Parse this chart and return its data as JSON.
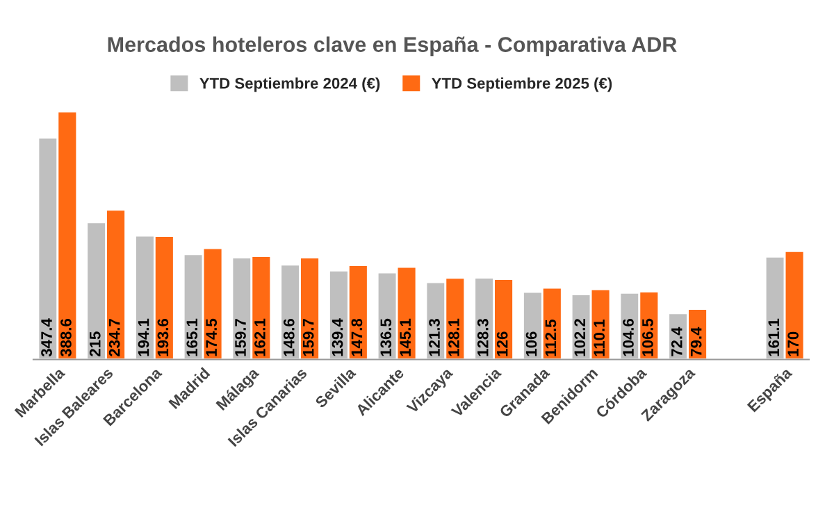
{
  "chart_data": {
    "type": "bar",
    "title": "Mercados hoteleros clave en España - Comparativa ADR",
    "categories": [
      "Marbella",
      "Islas Baleares",
      "Barcelona",
      "Madrid",
      "Málaga",
      "Islas Canarias",
      "Sevilla",
      "Alicante",
      "Vizcaya",
      "Valencia",
      "Granada",
      "Benidorm",
      "Córdoba",
      "Zaragoza",
      null,
      "España"
    ],
    "series": [
      {
        "name": "YTD Septiembre 2024 (€)",
        "color": "#bfbfbf",
        "values": [
          347.4,
          215,
          194.1,
          165.1,
          159.7,
          148.6,
          139.4,
          136.5,
          121.3,
          128.3,
          106,
          102.2,
          104.6,
          72.4,
          null,
          161.1
        ]
      },
      {
        "name": "YTD Septiembre 2025 (€)",
        "color": "#ff6a13",
        "values": [
          388.6,
          234.7,
          193.6,
          174.5,
          162.1,
          159.7,
          147.8,
          145.1,
          128.1,
          126,
          112.5,
          110.1,
          106.5,
          79.4,
          null,
          170
        ]
      }
    ],
    "data_labels": true,
    "legend": "top",
    "grid": false
  }
}
